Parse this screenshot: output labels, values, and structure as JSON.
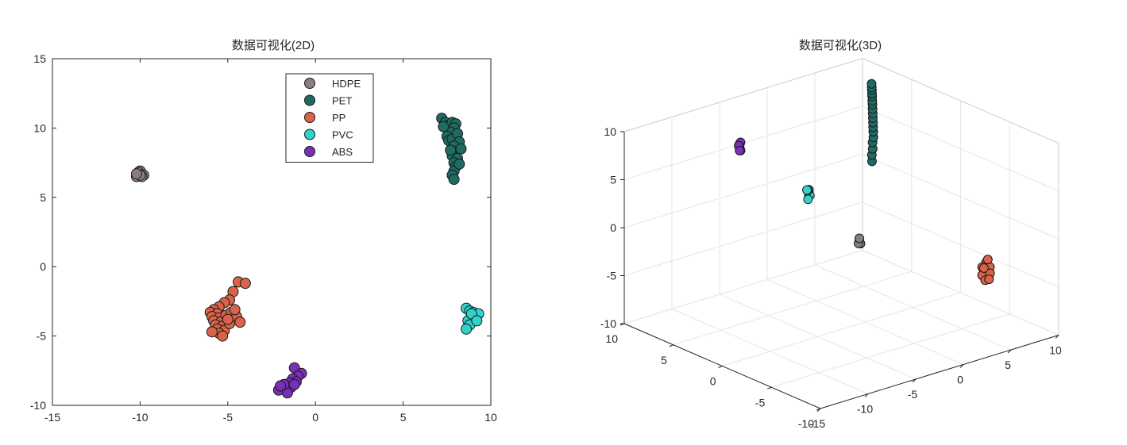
{
  "colors": {
    "HDPE": "#8a7f7f",
    "PET": "#1e6b64",
    "PP": "#d9624a",
    "PVC": "#2fd3cc",
    "ABS": "#7a2fb8",
    "axis": "#262626",
    "grid": "#e6e6e6",
    "marker_edge": "#1a1a1a"
  },
  "chart_data": [
    {
      "type": "scatter",
      "title": "数据可视化(2D)",
      "xlim": [
        -15,
        10
      ],
      "ylim": [
        -10,
        15
      ],
      "x_ticks": [
        -15,
        -10,
        -5,
        0,
        5,
        10
      ],
      "y_ticks": [
        -10,
        -5,
        0,
        5,
        10,
        15
      ],
      "grid": false,
      "legend_location": "top-right",
      "series": [
        {
          "name": "HDPE",
          "points": [
            [
              -10.1,
              6.6
            ],
            [
              -10.0,
              6.8
            ],
            [
              -9.9,
              6.7
            ],
            [
              -10.2,
              6.5
            ],
            [
              -10.0,
              6.9
            ],
            [
              -9.8,
              6.6
            ],
            [
              -10.1,
              6.8
            ],
            [
              -9.9,
              6.5
            ],
            [
              -10.0,
              6.6
            ],
            [
              -10.2,
              6.7
            ]
          ]
        },
        {
          "name": "PET",
          "points": [
            [
              7.2,
              10.7
            ],
            [
              7.4,
              10.4
            ],
            [
              7.6,
              10.2
            ],
            [
              7.8,
              10.4
            ],
            [
              8.0,
              10.3
            ],
            [
              7.9,
              10.0
            ],
            [
              7.7,
              9.7
            ],
            [
              7.5,
              9.4
            ],
            [
              7.6,
              9.1
            ],
            [
              7.8,
              9.2
            ],
            [
              8.1,
              9.6
            ],
            [
              8.2,
              9.0
            ],
            [
              7.9,
              8.7
            ],
            [
              8.0,
              8.3
            ],
            [
              7.8,
              8.0
            ],
            [
              8.1,
              7.8
            ],
            [
              7.9,
              7.5
            ],
            [
              8.0,
              7.2
            ],
            [
              7.9,
              6.9
            ],
            [
              7.8,
              6.6
            ],
            [
              7.9,
              6.3
            ],
            [
              8.2,
              7.4
            ],
            [
              7.3,
              10.1
            ],
            [
              8.3,
              8.5
            ],
            [
              7.7,
              8.4
            ]
          ]
        },
        {
          "name": "PP",
          "points": [
            [
              -4.4,
              -1.1
            ],
            [
              -4.0,
              -1.2
            ],
            [
              -4.7,
              -1.8
            ],
            [
              -4.9,
              -2.4
            ],
            [
              -5.2,
              -2.6
            ],
            [
              -5.5,
              -2.9
            ],
            [
              -5.8,
              -3.1
            ],
            [
              -6.0,
              -3.3
            ],
            [
              -5.6,
              -3.4
            ],
            [
              -5.9,
              -3.6
            ],
            [
              -5.5,
              -3.7
            ],
            [
              -5.8,
              -3.9
            ],
            [
              -5.4,
              -4.0
            ],
            [
              -5.7,
              -4.2
            ],
            [
              -5.3,
              -4.3
            ],
            [
              -5.6,
              -4.5
            ],
            [
              -5.2,
              -4.6
            ],
            [
              -5.5,
              -4.8
            ],
            [
              -5.1,
              -3.5
            ],
            [
              -4.8,
              -3.3
            ],
            [
              -4.5,
              -3.6
            ],
            [
              -4.3,
              -4.0
            ],
            [
              -4.9,
              -4.1
            ],
            [
              -5.0,
              -3.8
            ],
            [
              -5.9,
              -4.7
            ],
            [
              -5.3,
              -5.0
            ],
            [
              -4.6,
              -3.1
            ]
          ]
        },
        {
          "name": "PVC",
          "points": [
            [
              8.6,
              -3.0
            ],
            [
              8.8,
              -3.2
            ],
            [
              9.0,
              -3.3
            ],
            [
              9.2,
              -3.5
            ],
            [
              8.9,
              -3.6
            ],
            [
              9.1,
              -3.8
            ],
            [
              8.7,
              -3.9
            ],
            [
              8.8,
              -4.2
            ],
            [
              8.6,
              -4.5
            ],
            [
              9.3,
              -3.4
            ],
            [
              8.9,
              -3.4
            ],
            [
              9.2,
              -3.9
            ]
          ]
        },
        {
          "name": "ABS",
          "points": [
            [
              -1.2,
              -7.3
            ],
            [
              -0.8,
              -7.7
            ],
            [
              -1.0,
              -7.9
            ],
            [
              -1.3,
              -8.1
            ],
            [
              -1.1,
              -8.3
            ],
            [
              -1.5,
              -8.4
            ],
            [
              -1.7,
              -8.6
            ],
            [
              -1.4,
              -8.7
            ],
            [
              -1.9,
              -8.8
            ],
            [
              -2.1,
              -8.9
            ],
            [
              -1.6,
              -9.1
            ],
            [
              -1.8,
              -8.5
            ],
            [
              -1.2,
              -8.5
            ],
            [
              -2.0,
              -8.6
            ]
          ]
        }
      ]
    },
    {
      "type": "scatter",
      "title": "数据可视化(3D)",
      "xlim": [
        -15,
        10
      ],
      "ylim": [
        -10,
        10
      ],
      "zlim": [
        -10,
        10
      ],
      "x_ticks": [
        -15,
        -10,
        -5,
        0,
        5,
        10
      ],
      "y_ticks": [
        -10,
        -5,
        0,
        5,
        10
      ],
      "z_ticks": [
        -10,
        -5,
        0,
        5,
        10
      ],
      "grid": true,
      "series": [
        {
          "name": "HDPE",
          "points": [
            [
              -10.7,
              -9.8,
              6.0
            ],
            [
              -10.5,
              -9.6,
              6.1
            ],
            [
              -10.8,
              -10.0,
              5.9
            ],
            [
              -10.6,
              -9.7,
              6.2
            ],
            [
              -10.9,
              -9.9,
              5.9
            ],
            [
              -10.4,
              -9.5,
              6.1
            ]
          ]
        },
        {
          "name": "PET",
          "points": [
            [
              -10.0,
              -10.4,
              14.4
            ],
            [
              -9.5,
              -9.9,
              14.7
            ],
            [
              -9.0,
              -9.5,
              15.0
            ],
            [
              -8.5,
              -9.0,
              15.3
            ],
            [
              -8.0,
              -8.6,
              15.5
            ],
            [
              -7.5,
              -8.1,
              15.7
            ],
            [
              -7.0,
              -7.6,
              15.8
            ],
            [
              -6.5,
              -7.1,
              15.9
            ],
            [
              -6.0,
              -6.6,
              16.0
            ],
            [
              -5.5,
              -6.1,
              16.1
            ],
            [
              -5.0,
              -5.6,
              16.2
            ],
            [
              -4.5,
              -5.1,
              16.3
            ],
            [
              -4.0,
              -4.6,
              16.3
            ],
            [
              -3.5,
              -4.1,
              16.4
            ],
            [
              -3.0,
              -3.6,
              16.3
            ],
            [
              -2.5,
              -3.1,
              16.3
            ],
            [
              -2.0,
              -2.6,
              16.2
            ],
            [
              -1.5,
              -2.1,
              16.2
            ]
          ]
        },
        {
          "name": "PP",
          "points": [
            [
              6.5,
              -6.0,
              -4.2
            ],
            [
              6.8,
              -5.7,
              -3.9
            ],
            [
              7.1,
              -5.4,
              -3.6
            ],
            [
              6.9,
              -5.2,
              -4.1
            ],
            [
              6.3,
              -5.8,
              -4.5
            ],
            [
              6.0,
              -6.3,
              -4.3
            ],
            [
              6.6,
              -5.5,
              -4.7
            ],
            [
              7.0,
              -5.9,
              -3.8
            ],
            [
              6.4,
              -6.5,
              -4.0
            ],
            [
              7.3,
              -5.0,
              -4.4
            ],
            [
              6.2,
              -6.2,
              -4.8
            ],
            [
              7.4,
              -5.3,
              -3.4
            ],
            [
              6.7,
              -6.1,
              -4.9
            ]
          ]
        },
        {
          "name": "PVC",
          "points": [
            [
              5.3,
              10.9,
              -2.9
            ],
            [
              5.5,
              11.1,
              -2.8
            ],
            [
              5.1,
              10.7,
              -3.1
            ],
            [
              5.4,
              10.9,
              -3.3
            ],
            [
              5.6,
              11.3,
              -3.0
            ],
            [
              4.9,
              10.6,
              -3.4
            ],
            [
              5.2,
              11.0,
              -2.7
            ]
          ]
        },
        {
          "name": "ABS",
          "points": [
            [
              -6.5,
              6.5,
              7.3
            ],
            [
              -6.3,
              6.7,
              7.5
            ],
            [
              -6.6,
              6.3,
              7.1
            ],
            [
              -6.4,
              6.5,
              7.8
            ],
            [
              -6.2,
              6.8,
              7.2
            ],
            [
              -6.7,
              6.4,
              7.6
            ],
            [
              -6.4,
              6.6,
              6.9
            ]
          ]
        }
      ]
    }
  ]
}
